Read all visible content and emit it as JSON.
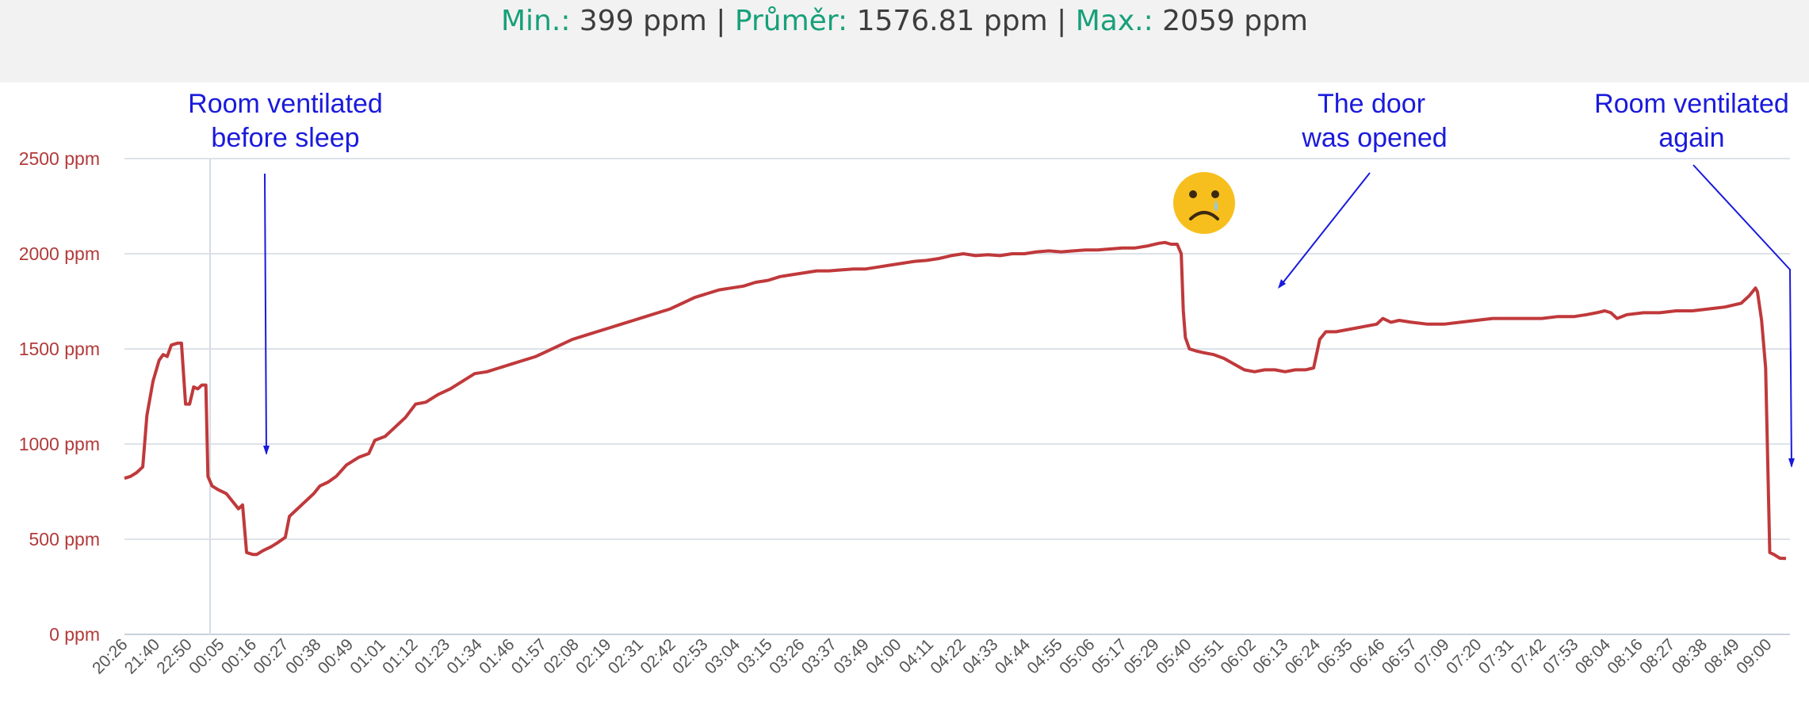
{
  "stats": {
    "min_label": "Min.:",
    "min_value": "399 ppm",
    "avg_label": "Průměr:",
    "avg_value": "1576.81 ppm",
    "max_label": "Max.:",
    "max_value": "2059 ppm",
    "separator": "|"
  },
  "colors": {
    "series": "#c0393b",
    "annotation": "#1a1adc",
    "stat_label": "#17a07a",
    "grid": "#dde2ea",
    "y_tick": "#b23a3a"
  },
  "annotations": [
    {
      "lines": [
        "Room ventilated",
        "before sleep"
      ]
    },
    {
      "lines": [
        "The door",
        "was opened"
      ]
    },
    {
      "lines": [
        "Room ventilated",
        "again"
      ]
    }
  ],
  "emoji": {
    "icon": "crying-sad-face-icon"
  },
  "chart_data": {
    "type": "line",
    "ylim": [
      0,
      2500
    ],
    "y_ticks": [
      0,
      500,
      1000,
      1500,
      2000,
      2500
    ],
    "y_tick_labels": [
      "0 ppm",
      "500 ppm",
      "1000 ppm",
      "1500 ppm",
      "2000 ppm",
      "2500 ppm"
    ],
    "x_tick_labels": [
      "20:26",
      "21:40",
      "22:50",
      "00:05",
      "00:16",
      "00:27",
      "00:38",
      "00:49",
      "01:01",
      "01:12",
      "01:23",
      "01:34",
      "01:46",
      "01:57",
      "02:08",
      "02:19",
      "02:31",
      "02:42",
      "02:53",
      "03:04",
      "03:15",
      "03:26",
      "03:37",
      "03:49",
      "04:00",
      "04:11",
      "04:22",
      "04:33",
      "04:44",
      "04:55",
      "05:06",
      "05:17",
      "05:29",
      "05:40",
      "05:51",
      "06:02",
      "06:13",
      "06:24",
      "06:35",
      "06:46",
      "06:57",
      "07:09",
      "07:20",
      "07:31",
      "07:42",
      "07:53",
      "08:04",
      "08:16",
      "08:27",
      "08:38",
      "08:49",
      "09:00"
    ],
    "grid": true,
    "legend": "none",
    "series": [
      {
        "points": [
          [
            0.0,
            820
          ],
          [
            0.3,
            830
          ],
          [
            0.6,
            850
          ],
          [
            0.9,
            880
          ],
          [
            1.1,
            1150
          ],
          [
            1.4,
            1330
          ],
          [
            1.7,
            1440
          ],
          [
            1.9,
            1470
          ],
          [
            2.1,
            1460
          ],
          [
            2.3,
            1520
          ],
          [
            2.6,
            1530
          ],
          [
            2.8,
            1530
          ],
          [
            3.0,
            1210
          ],
          [
            3.2,
            1210
          ],
          [
            3.4,
            1300
          ],
          [
            3.6,
            1290
          ],
          [
            3.8,
            1310
          ],
          [
            4.0,
            1310
          ],
          [
            4.1,
            830
          ],
          [
            4.3,
            780
          ],
          [
            4.6,
            760
          ],
          [
            5.0,
            740
          ],
          [
            5.3,
            700
          ],
          [
            5.6,
            660
          ],
          [
            5.8,
            680
          ],
          [
            6.0,
            430
          ],
          [
            6.3,
            420
          ],
          [
            6.5,
            420
          ],
          [
            6.8,
            440
          ],
          [
            7.2,
            460
          ],
          [
            7.5,
            480
          ],
          [
            7.9,
            510
          ],
          [
            8.1,
            620
          ],
          [
            8.4,
            650
          ],
          [
            8.8,
            690
          ],
          [
            9.3,
            740
          ],
          [
            9.6,
            780
          ],
          [
            10.0,
            800
          ],
          [
            10.4,
            830
          ],
          [
            10.9,
            890
          ],
          [
            11.5,
            930
          ],
          [
            12.0,
            950
          ],
          [
            12.3,
            1020
          ],
          [
            12.8,
            1040
          ],
          [
            13.2,
            1080
          ],
          [
            13.8,
            1140
          ],
          [
            14.3,
            1210
          ],
          [
            14.8,
            1220
          ],
          [
            15.4,
            1260
          ],
          [
            16.0,
            1290
          ],
          [
            16.6,
            1330
          ],
          [
            17.2,
            1370
          ],
          [
            17.8,
            1380
          ],
          [
            18.4,
            1400
          ],
          [
            19.0,
            1420
          ],
          [
            19.6,
            1440
          ],
          [
            20.2,
            1460
          ],
          [
            20.8,
            1490
          ],
          [
            21.4,
            1520
          ],
          [
            22.0,
            1550
          ],
          [
            22.6,
            1570
          ],
          [
            23.2,
            1590
          ],
          [
            23.8,
            1610
          ],
          [
            24.4,
            1630
          ],
          [
            25.0,
            1650
          ],
          [
            25.6,
            1670
          ],
          [
            26.2,
            1690
          ],
          [
            26.8,
            1710
          ],
          [
            27.4,
            1740
          ],
          [
            28.0,
            1770
          ],
          [
            28.6,
            1790
          ],
          [
            29.2,
            1810
          ],
          [
            29.8,
            1820
          ],
          [
            30.4,
            1830
          ],
          [
            31.0,
            1850
          ],
          [
            31.6,
            1860
          ],
          [
            32.2,
            1880
          ],
          [
            32.8,
            1890
          ],
          [
            33.4,
            1900
          ],
          [
            34.0,
            1910
          ],
          [
            34.6,
            1910
          ],
          [
            35.2,
            1915
          ],
          [
            35.8,
            1920
          ],
          [
            36.4,
            1920
          ],
          [
            37.0,
            1930
          ],
          [
            37.6,
            1940
          ],
          [
            38.2,
            1950
          ],
          [
            38.8,
            1960
          ],
          [
            39.4,
            1965
          ],
          [
            40.0,
            1975
          ],
          [
            40.6,
            1990
          ],
          [
            41.2,
            2000
          ],
          [
            41.8,
            1990
          ],
          [
            42.4,
            1995
          ],
          [
            43.0,
            1990
          ],
          [
            43.6,
            2000
          ],
          [
            44.2,
            2000
          ],
          [
            44.8,
            2010
          ],
          [
            45.4,
            2015
          ],
          [
            46.0,
            2010
          ],
          [
            46.6,
            2015
          ],
          [
            47.2,
            2020
          ],
          [
            47.8,
            2020
          ],
          [
            48.4,
            2025
          ],
          [
            49.0,
            2030
          ],
          [
            49.6,
            2030
          ],
          [
            50.2,
            2040
          ],
          [
            50.8,
            2055
          ],
          [
            51.1,
            2059
          ],
          [
            51.4,
            2050
          ],
          [
            51.7,
            2050
          ],
          [
            51.9,
            2000
          ],
          [
            52.0,
            1700
          ],
          [
            52.1,
            1560
          ],
          [
            52.3,
            1500
          ],
          [
            52.6,
            1490
          ],
          [
            53.0,
            1480
          ],
          [
            53.5,
            1470
          ],
          [
            54.0,
            1450
          ],
          [
            54.5,
            1420
          ],
          [
            55.0,
            1390
          ],
          [
            55.5,
            1380
          ],
          [
            56.0,
            1390
          ],
          [
            56.5,
            1390
          ],
          [
            57.0,
            1380
          ],
          [
            57.5,
            1390
          ],
          [
            58.0,
            1390
          ],
          [
            58.4,
            1400
          ],
          [
            58.7,
            1550
          ],
          [
            59.0,
            1590
          ],
          [
            59.5,
            1590
          ],
          [
            60.0,
            1600
          ],
          [
            60.5,
            1610
          ],
          [
            61.0,
            1620
          ],
          [
            61.5,
            1630
          ],
          [
            61.8,
            1660
          ],
          [
            62.2,
            1640
          ],
          [
            62.6,
            1650
          ],
          [
            63.2,
            1640
          ],
          [
            64.0,
            1630
          ],
          [
            64.8,
            1630
          ],
          [
            65.6,
            1640
          ],
          [
            66.4,
            1650
          ],
          [
            67.2,
            1660
          ],
          [
            68.0,
            1660
          ],
          [
            68.8,
            1660
          ],
          [
            69.6,
            1660
          ],
          [
            70.4,
            1670
          ],
          [
            71.2,
            1670
          ],
          [
            71.8,
            1680
          ],
          [
            72.3,
            1690
          ],
          [
            72.7,
            1700
          ],
          [
            73.0,
            1690
          ],
          [
            73.3,
            1660
          ],
          [
            73.8,
            1680
          ],
          [
            74.6,
            1690
          ],
          [
            75.4,
            1690
          ],
          [
            76.2,
            1700
          ],
          [
            77.0,
            1700
          ],
          [
            77.8,
            1710
          ],
          [
            78.6,
            1720
          ],
          [
            79.4,
            1740
          ],
          [
            79.8,
            1780
          ],
          [
            80.1,
            1820
          ],
          [
            80.2,
            1800
          ],
          [
            80.4,
            1650
          ],
          [
            80.6,
            1400
          ],
          [
            80.8,
            430
          ],
          [
            81.0,
            420
          ],
          [
            81.3,
            400
          ],
          [
            81.6,
            399
          ]
        ]
      }
    ]
  }
}
